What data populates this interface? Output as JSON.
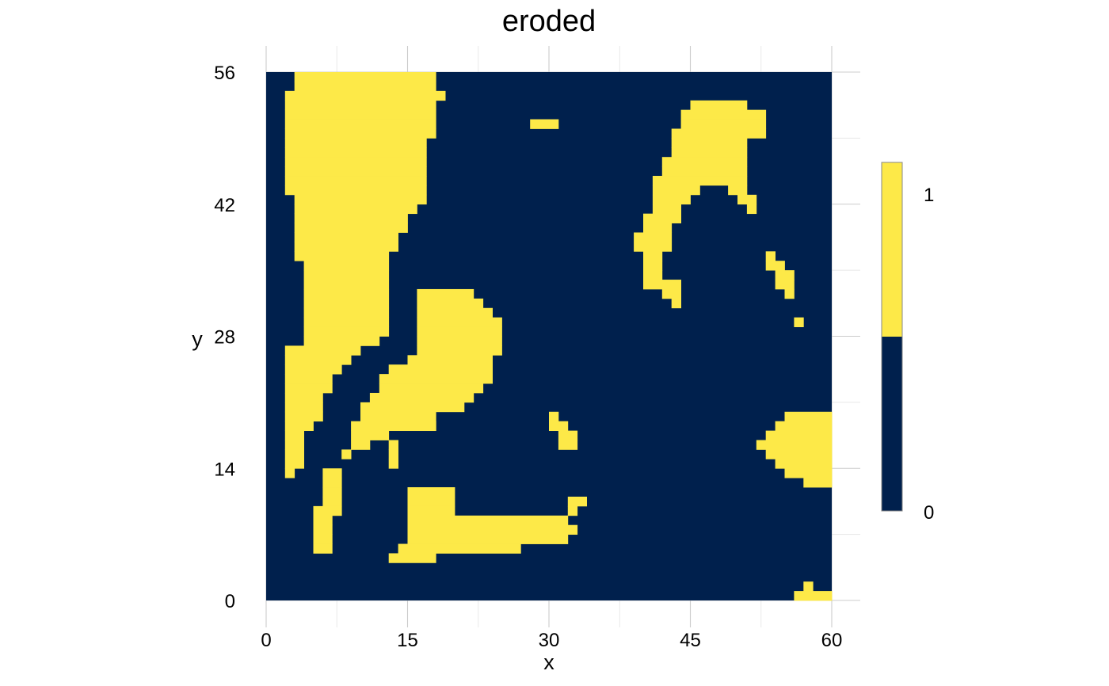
{
  "chart_data": {
    "type": "heatmap",
    "title": "eroded",
    "xlabel": "x",
    "ylabel": "y",
    "xlim": [
      0,
      60
    ],
    "ylim": [
      0,
      56
    ],
    "x_ticks": [
      "0",
      "15",
      "30",
      "45",
      "60"
    ],
    "y_ticks": [
      "0",
      "14",
      "28",
      "42",
      "56"
    ],
    "legend": {
      "position": "right",
      "labels": [
        "1",
        "0"
      ]
    },
    "colors": {
      "1": "#FDE948",
      "0": "#00204D"
    },
    "grid": true,
    "background_value": 0,
    "cells_value_1_row_runs": [
      [
        55,
        3,
        17
      ],
      [
        54,
        3,
        17
      ],
      [
        53,
        2,
        18
      ],
      [
        52,
        2,
        17
      ],
      [
        52,
        45,
        50
      ],
      [
        51,
        2,
        17
      ],
      [
        51,
        44,
        52
      ],
      [
        50,
        2,
        17
      ],
      [
        50,
        28,
        30
      ],
      [
        50,
        44,
        52
      ],
      [
        49,
        2,
        17
      ],
      [
        49,
        43,
        52
      ],
      [
        48,
        2,
        16
      ],
      [
        48,
        43,
        50
      ],
      [
        47,
        2,
        16
      ],
      [
        47,
        43,
        50
      ],
      [
        46,
        2,
        16
      ],
      [
        46,
        42,
        50
      ],
      [
        45,
        2,
        16
      ],
      [
        45,
        42,
        50
      ],
      [
        44,
        2,
        16
      ],
      [
        44,
        41,
        50
      ],
      [
        43,
        2,
        16
      ],
      [
        43,
        41,
        45
      ],
      [
        43,
        49,
        50
      ],
      [
        42,
        3,
        16
      ],
      [
        42,
        41,
        44
      ],
      [
        42,
        50,
        51
      ],
      [
        41,
        3,
        15
      ],
      [
        41,
        41,
        43
      ],
      [
        41,
        51,
        51
      ],
      [
        40,
        3,
        14
      ],
      [
        40,
        40,
        43
      ],
      [
        39,
        3,
        14
      ],
      [
        39,
        40,
        42
      ],
      [
        38,
        3,
        13
      ],
      [
        38,
        39,
        42
      ],
      [
        37,
        3,
        13
      ],
      [
        37,
        39,
        42
      ],
      [
        36,
        3,
        12
      ],
      [
        36,
        40,
        41
      ],
      [
        36,
        53,
        53
      ],
      [
        35,
        4,
        12
      ],
      [
        35,
        40,
        41
      ],
      [
        35,
        53,
        54
      ],
      [
        34,
        4,
        12
      ],
      [
        34,
        40,
        41
      ],
      [
        34,
        54,
        55
      ],
      [
        33,
        4,
        12
      ],
      [
        33,
        40,
        43
      ],
      [
        33,
        54,
        55
      ],
      [
        32,
        4,
        12
      ],
      [
        32,
        16,
        21
      ],
      [
        32,
        42,
        43
      ],
      [
        32,
        55,
        55
      ],
      [
        31,
        4,
        12
      ],
      [
        31,
        16,
        22
      ],
      [
        31,
        43,
        43
      ],
      [
        30,
        4,
        12
      ],
      [
        30,
        16,
        23
      ],
      [
        29,
        4,
        12
      ],
      [
        29,
        16,
        24
      ],
      [
        29,
        56,
        56
      ],
      [
        28,
        4,
        12
      ],
      [
        28,
        16,
        24
      ],
      [
        27,
        4,
        11
      ],
      [
        27,
        16,
        24
      ],
      [
        26,
        2,
        9
      ],
      [
        26,
        16,
        24
      ],
      [
        25,
        2,
        8
      ],
      [
        25,
        15,
        23
      ],
      [
        24,
        2,
        7
      ],
      [
        24,
        13,
        23
      ],
      [
        23,
        2,
        6
      ],
      [
        23,
        12,
        23
      ],
      [
        22,
        2,
        6
      ],
      [
        22,
        12,
        22
      ],
      [
        21,
        2,
        5
      ],
      [
        21,
        11,
        21
      ],
      [
        20,
        2,
        5
      ],
      [
        20,
        10,
        20
      ],
      [
        19,
        2,
        5
      ],
      [
        19,
        10,
        17
      ],
      [
        19,
        30,
        30
      ],
      [
        19,
        55,
        59
      ],
      [
        18,
        2,
        4
      ],
      [
        18,
        9,
        17
      ],
      [
        18,
        17,
        17
      ],
      [
        18,
        30,
        31
      ],
      [
        18,
        54,
        59
      ],
      [
        17,
        2,
        3
      ],
      [
        17,
        9,
        12
      ],
      [
        17,
        31,
        32
      ],
      [
        17,
        53,
        59
      ],
      [
        16,
        2,
        3
      ],
      [
        16,
        9,
        10
      ],
      [
        16,
        13,
        13
      ],
      [
        16,
        31,
        32
      ],
      [
        16,
        52,
        59
      ],
      [
        15,
        2,
        3
      ],
      [
        15,
        8,
        8
      ],
      [
        15,
        13,
        13
      ],
      [
        15,
        53,
        59
      ],
      [
        14,
        2,
        3
      ],
      [
        14,
        13,
        13
      ],
      [
        14,
        54,
        59
      ],
      [
        13,
        2,
        2
      ],
      [
        13,
        6,
        7
      ],
      [
        13,
        55,
        59
      ],
      [
        12,
        6,
        7
      ],
      [
        12,
        57,
        59
      ],
      [
        11,
        6,
        7
      ],
      [
        11,
        15,
        19
      ],
      [
        10,
        6,
        7
      ],
      [
        10,
        15,
        19
      ],
      [
        10,
        32,
        33
      ],
      [
        9,
        5,
        7
      ],
      [
        9,
        15,
        19
      ],
      [
        9,
        32,
        32
      ],
      [
        8,
        5,
        6
      ],
      [
        8,
        15,
        31
      ],
      [
        7,
        5,
        6
      ],
      [
        7,
        15,
        32
      ],
      [
        6,
        5,
        6
      ],
      [
        6,
        15,
        31
      ],
      [
        5,
        5,
        6
      ],
      [
        5,
        14,
        26
      ],
      [
        4,
        13,
        17
      ],
      [
        1,
        57,
        57
      ],
      [
        0,
        56,
        59
      ]
    ]
  }
}
